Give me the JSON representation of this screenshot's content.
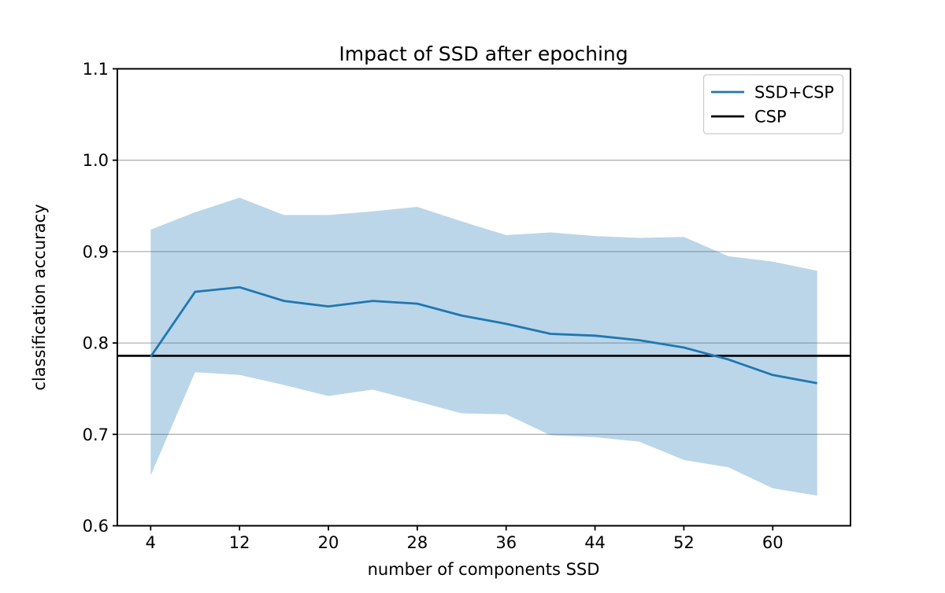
{
  "chart_data": {
    "type": "line",
    "title": "Impact of SSD after epoching",
    "xlabel": "number of components SSD",
    "ylabel": "classification accuracy",
    "xlim": [
      1,
      67
    ],
    "ylim": [
      0.6,
      1.1
    ],
    "x_ticks": [
      4,
      12,
      20,
      28,
      36,
      44,
      52,
      60
    ],
    "y_ticks": [
      "0.6",
      "0.7",
      "0.8",
      "0.9",
      "1.0",
      "1.1"
    ],
    "grid": "horizontal-only",
    "grid_color": "#b0b0b0",
    "x": [
      4,
      8,
      12,
      16,
      20,
      24,
      28,
      32,
      36,
      40,
      44,
      48,
      52,
      56,
      60,
      64
    ],
    "series": [
      {
        "name": "SSD+CSP",
        "style": "line-with-confidence-band",
        "color": "#1f77b4",
        "band_color": "rgba(31,119,180,0.3)",
        "values": [
          0.785,
          0.856,
          0.861,
          0.846,
          0.84,
          0.846,
          0.843,
          0.83,
          0.821,
          0.81,
          0.808,
          0.803,
          0.795,
          0.782,
          0.765,
          0.756
        ],
        "band_upper": [
          0.924,
          0.943,
          0.959,
          0.94,
          0.94,
          0.944,
          0.949,
          0.933,
          0.918,
          0.921,
          0.917,
          0.915,
          0.916,
          0.895,
          0.889,
          0.879
        ],
        "band_lower": [
          0.655,
          0.768,
          0.765,
          0.754,
          0.742,
          0.749,
          0.736,
          0.723,
          0.722,
          0.699,
          0.697,
          0.692,
          0.672,
          0.664,
          0.641,
          0.633
        ]
      },
      {
        "name": "CSP",
        "style": "horizontal-line",
        "color": "#000000",
        "value": 0.786
      }
    ],
    "legend": {
      "position": "upper right",
      "entries": [
        {
          "label": "SSD+CSP",
          "color": "#1f77b4"
        },
        {
          "label": "CSP",
          "color": "#000000"
        }
      ]
    }
  }
}
